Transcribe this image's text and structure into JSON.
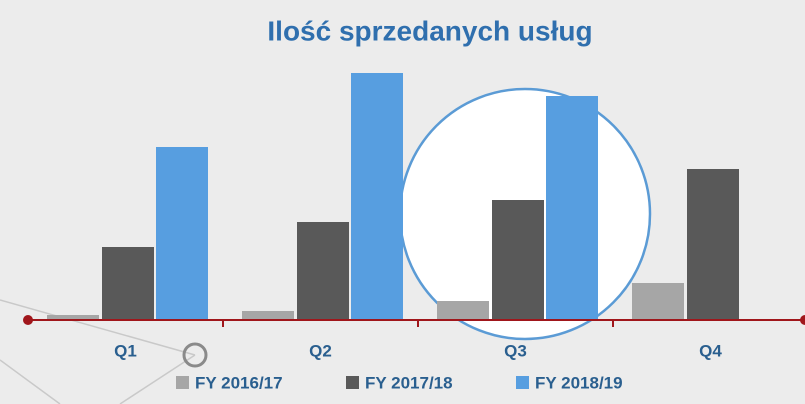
{
  "chart_data": {
    "type": "bar",
    "title": "Ilość sprzedanych usług",
    "categories": [
      "Q1",
      "Q2",
      "Q3",
      "Q4"
    ],
    "series": [
      {
        "name": "FY 2016/17",
        "color": "#a6a6a6",
        "values": [
          5,
          9,
          19,
          37
        ]
      },
      {
        "name": "FY 2017/18",
        "color": "#595959",
        "values": [
          73,
          98,
          120,
          151
        ]
      },
      {
        "name": "FY 2018/19",
        "color": "#579ee0",
        "values": [
          173,
          247,
          224,
          null
        ]
      }
    ]
  }
}
